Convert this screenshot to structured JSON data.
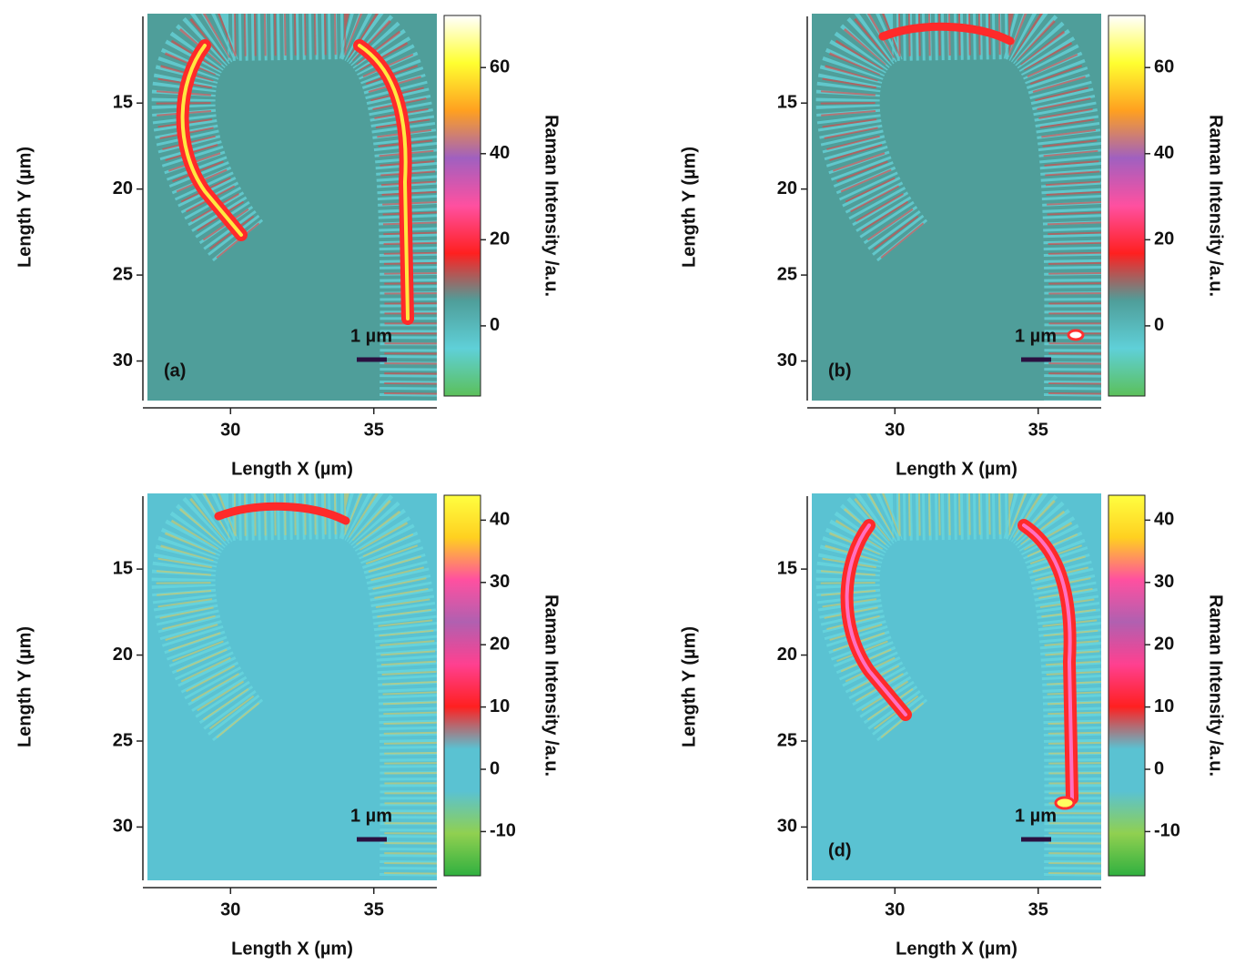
{
  "charts": [
    {
      "type": "heatmap",
      "panel_label": "(a)",
      "xlabel": "Length X (µm)",
      "ylabel": "Length Y (µm)",
      "xlim": [
        27.1,
        37.2
      ],
      "xticks": [
        30,
        35
      ],
      "ylim": [
        9.8,
        32.3
      ],
      "yticks": [
        15,
        20,
        25,
        30
      ],
      "y_inverted": true,
      "background": "#4f9e9a",
      "scale_bar": "1 µm",
      "colorbar": {
        "label": "Raman Intensity /a.u.",
        "lim": [
          -16.3,
          72.1
        ],
        "ticks": [
          0,
          20,
          40,
          60
        ],
        "colors": [
          "#5cc05a",
          "#5fd0d8",
          "#4f9e9a",
          "#ff2020",
          "#ff50a0",
          "#a060c0",
          "#ffa020",
          "#ffff30",
          "#ffffff"
        ]
      }
    },
    {
      "type": "heatmap",
      "panel_label": "(b)",
      "xlabel": "Length X (µm)",
      "ylabel": "Length Y (µm)",
      "xlim": [
        27.1,
        37.2
      ],
      "xticks": [
        30,
        35
      ],
      "ylim": [
        9.8,
        32.3
      ],
      "yticks": [
        15,
        20,
        25,
        30
      ],
      "y_inverted": true,
      "background": "#4f9e9a",
      "scale_bar": "1 µm",
      "colorbar": {
        "label": "Raman Intensity /a.u.",
        "lim": [
          -16.3,
          72.1
        ],
        "ticks": [
          0,
          20,
          40,
          60
        ],
        "colors": [
          "#5cc05a",
          "#5fd0d8",
          "#4f9e9a",
          "#ff2020",
          "#ff50a0",
          "#a060c0",
          "#ffa020",
          "#ffff30",
          "#ffffff"
        ]
      }
    },
    {
      "type": "heatmap",
      "xlabel": "Length X (µm)",
      "ylabel": "Length Y (µm)",
      "xlim": [
        27.1,
        37.2
      ],
      "xticks": [
        30,
        35
      ],
      "ylim": [
        10.6,
        33.1
      ],
      "yticks": [
        15,
        20,
        25,
        30
      ],
      "y_inverted": true,
      "background": "#5ac2d2",
      "scale_bar": "1 µm",
      "colorbar": {
        "label": "Raman Intensity /a.u.",
        "lim": [
          -17.1,
          44
        ],
        "ticks": [
          -10,
          0,
          10,
          20,
          30,
          40
        ],
        "colors": [
          "#30b040",
          "#90d050",
          "#5ac2d2",
          "#5ac2d2",
          "#ff2020",
          "#ff4090",
          "#b060b0",
          "#ff50a0",
          "#ffd020",
          "#ffff40"
        ]
      }
    },
    {
      "type": "heatmap",
      "panel_label": "(d)",
      "xlabel": "Length X (µm)",
      "ylabel": "Length Y (µm)",
      "xlim": [
        27.1,
        37.2
      ],
      "xticks": [
        30,
        35
      ],
      "ylim": [
        10.6,
        33.1
      ],
      "yticks": [
        15,
        20,
        25,
        30
      ],
      "y_inverted": true,
      "background": "#5ac2d2",
      "scale_bar": "1 µm",
      "colorbar": {
        "label": "Raman Intensity /a.u.",
        "lim": [
          -17.1,
          44
        ],
        "ticks": [
          -10,
          0,
          10,
          20,
          30,
          40
        ],
        "colors": [
          "#30b040",
          "#90d050",
          "#5ac2d2",
          "#5ac2d2",
          "#ff2020",
          "#ff4090",
          "#b060b0",
          "#ff50a0",
          "#ffd020",
          "#ffff40"
        ]
      }
    }
  ]
}
